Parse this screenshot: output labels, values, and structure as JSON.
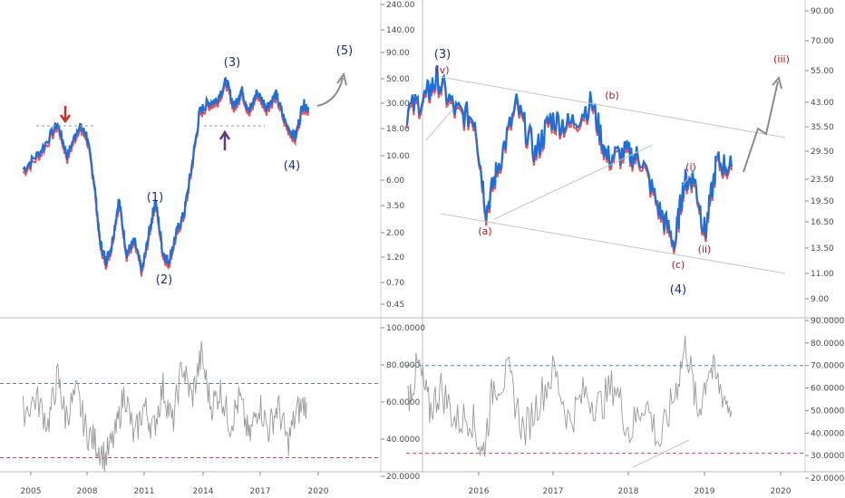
{
  "colors": {
    "price_main": "#1e6fd9",
    "price_shadow": "#e8535a",
    "rsi_line": "#9a9a9a",
    "upper_band": "#4a86c8",
    "lower_band": "#d9434b",
    "wave_major": "#1a2b8c",
    "wave_minor": "#b3171f",
    "projection": "#8c8c8c",
    "arrow_down": "#d02b2b",
    "arrow_up": "#5d3d7a",
    "grid_divider": "#bfbfbf",
    "channel": "#c6c6c6"
  },
  "chart_data": [
    {
      "type": "line",
      "panel": "left-price",
      "scale": "log",
      "y_ticks": [
        "240.00",
        "140.00",
        "90.00",
        "50.00",
        "30.00",
        "18.00",
        "10.00",
        "6.00",
        "3.50",
        "2.00",
        "1.20",
        "0.70",
        "0.45"
      ],
      "x_ticks": [
        "2005",
        "2008",
        "2011",
        "2014",
        "2017",
        "2020"
      ],
      "x": [
        2004.6,
        2005.5,
        2006.4,
        2006.9,
        2007.5,
        2007.9,
        2008.3,
        2008.6,
        2008.9,
        2009.2,
        2009.6,
        2010.0,
        2010.4,
        2010.8,
        2011.2,
        2011.5,
        2011.9,
        2012.2,
        2012.6,
        2013.0,
        2013.4,
        2013.8,
        2014.2,
        2014.7,
        2015.2,
        2015.6,
        2016.0,
        2016.4,
        2016.8,
        2017.3,
        2017.8,
        2018.3,
        2018.8,
        2019.2,
        2019.5
      ],
      "values": [
        7.5,
        11,
        20,
        10,
        19,
        16,
        6,
        1.7,
        1.1,
        1.5,
        4,
        1.3,
        1.7,
        0.9,
        2.1,
        4,
        1.3,
        1.1,
        2,
        3,
        8,
        25,
        30,
        32,
        48,
        28,
        40,
        25,
        38,
        28,
        36,
        20,
        15,
        30,
        27
      ],
      "wave_labels": [
        "(1)",
        "(2)",
        "(3)",
        "(4)",
        "(5)"
      ]
    },
    {
      "type": "line",
      "panel": "right-price",
      "scale": "log",
      "y_ticks": [
        "90.00",
        "70.00",
        "55.00",
        "43.00",
        "35.50",
        "29.50",
        "23.50",
        "19.50",
        "16.50",
        "13.50",
        "11.00",
        "9.00"
      ],
      "x_ticks": [
        "2016",
        "2017",
        "2018",
        "2019",
        "2020"
      ],
      "x": [
        2015.05,
        2015.3,
        2015.45,
        2015.7,
        2015.95,
        2016.1,
        2016.25,
        2016.5,
        2016.75,
        2016.95,
        2017.2,
        2017.5,
        2017.7,
        2017.95,
        2018.15,
        2018.4,
        2018.6,
        2018.72,
        2018.85,
        2019.0,
        2019.15,
        2019.35
      ],
      "values": [
        40,
        45,
        52,
        40,
        38,
        18,
        26,
        42,
        29,
        38,
        36,
        43,
        28,
        29,
        28,
        18,
        14,
        23,
        24,
        15,
        27,
        26
      ],
      "wave_labels": [
        "(3)",
        "(v)",
        "(a)",
        "(b)",
        "(c)",
        "(i)",
        "(ii)",
        "(iii)",
        "(4)"
      ]
    },
    {
      "type": "line",
      "panel": "left-rsi",
      "y_ticks": [
        "100.0000",
        "80.0000",
        "60.0000",
        "40.0000",
        "20.0000"
      ],
      "ylim": [
        20,
        100
      ],
      "upper_band": 70,
      "lower_band": 30,
      "x": [
        2004.6,
        2005.3,
        2005.9,
        2006.4,
        2006.8,
        2007.4,
        2007.9,
        2008.4,
        2008.9,
        2009.4,
        2009.9,
        2010.4,
        2010.9,
        2011.4,
        2011.9,
        2012.4,
        2012.9,
        2013.4,
        2013.9,
        2014.4,
        2014.9,
        2015.4,
        2015.9,
        2016.4,
        2016.9,
        2017.4,
        2017.9,
        2018.4,
        2018.9,
        2019.4
      ],
      "values": [
        55,
        62,
        48,
        74,
        52,
        65,
        44,
        38,
        30,
        42,
        66,
        40,
        58,
        45,
        68,
        48,
        80,
        62,
        85,
        58,
        66,
        48,
        62,
        40,
        60,
        45,
        58,
        38,
        55,
        60
      ]
    },
    {
      "type": "line",
      "panel": "right-rsi",
      "y_ticks": [
        "90.0000",
        "80.0000",
        "70.0000",
        "60.0000",
        "50.0000",
        "40.0000",
        "30.0000",
        "20.0000"
      ],
      "ylim": [
        20,
        90
      ],
      "upper_band": 70,
      "lower_band": 31,
      "x": [
        2015.05,
        2015.2,
        2015.35,
        2015.5,
        2015.7,
        2015.9,
        2016.05,
        2016.2,
        2016.4,
        2016.6,
        2016.8,
        2017.0,
        2017.2,
        2017.4,
        2017.6,
        2017.8,
        2018.0,
        2018.2,
        2018.4,
        2018.6,
        2018.75,
        2018.9,
        2019.05,
        2019.2,
        2019.35
      ],
      "values": [
        55,
        70,
        50,
        60,
        45,
        48,
        30,
        62,
        65,
        40,
        55,
        68,
        45,
        58,
        52,
        62,
        40,
        55,
        35,
        58,
        80,
        48,
        70,
        60,
        50
      ]
    }
  ]
}
